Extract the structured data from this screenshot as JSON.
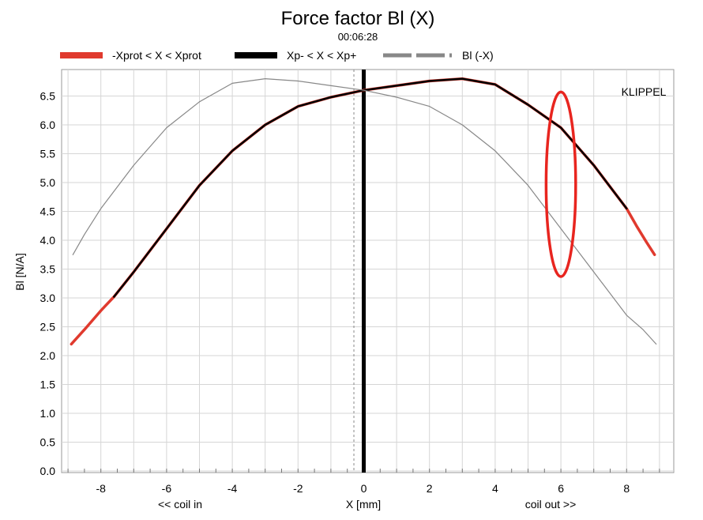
{
  "chart_data": {
    "type": "line",
    "title": "Force factor Bl (X)",
    "subtitle": "00:06:28",
    "watermark": "KLIPPEL",
    "xlabel": "X [mm]",
    "xlabel_left": "<< coil in",
    "xlabel_right": "coil out >>",
    "ylabel": "Bl [N/A]",
    "xlim": [
      -9.1,
      9.4
    ],
    "ylim": [
      0,
      6.9
    ],
    "xticks": [
      -8,
      -6,
      -4,
      -2,
      0,
      2,
      4,
      6,
      8
    ],
    "xtick_labels": [
      "-8",
      "-6",
      "-4",
      "-2",
      "0",
      "2",
      "4",
      "6",
      "8"
    ],
    "yticks": [
      0,
      0.5,
      1,
      1.5,
      2,
      2.5,
      3,
      3.5,
      4,
      4.5,
      5,
      5.5,
      6,
      6.5
    ],
    "ytick_labels": [
      "0.0",
      "0.5",
      "1.0",
      "1.5",
      "2.0",
      "2.5",
      "3.0",
      "3.5",
      "4.0",
      "4.5",
      "5.0",
      "5.5",
      "6.0",
      "6.5"
    ],
    "grid": true,
    "legend_position": "top",
    "legend": [
      {
        "label": "-Xprot < X < Xprot",
        "color": "#e03a2e",
        "style": "solid"
      },
      {
        "label": "Xp- < X < Xp+",
        "color": "#000000",
        "style": "solid"
      },
      {
        "label": "Bl (-X)",
        "color": "#888888",
        "style": "dashed"
      }
    ],
    "series": [
      {
        "name": "-Xprot < X < Xprot",
        "color": "#e03a2e",
        "x": [
          -8.9,
          -8.5,
          -8.0,
          -7.6,
          -7.0,
          -6.0,
          -5.0,
          -4.0,
          -3.0,
          -2.0,
          -1.0,
          0.0,
          1.0,
          2.0,
          3.0,
          4.0,
          5.0,
          6.0,
          7.0,
          8.0,
          8.3,
          8.6,
          8.85
        ],
        "y": [
          2.2,
          2.45,
          2.78,
          3.02,
          3.45,
          4.2,
          4.95,
          5.55,
          6.0,
          6.32,
          6.48,
          6.6,
          6.68,
          6.76,
          6.8,
          6.7,
          6.35,
          5.95,
          5.3,
          4.55,
          4.25,
          3.97,
          3.75
        ]
      },
      {
        "name": "Xp- < X < Xp+",
        "color": "#000000",
        "x": [
          -7.6,
          -7.0,
          -6.0,
          -5.0,
          -4.0,
          -3.0,
          -2.0,
          -1.0,
          0.0,
          1.0,
          2.0,
          3.0,
          4.0,
          5.0,
          6.0,
          7.0,
          8.0
        ],
        "y": [
          3.02,
          3.45,
          4.2,
          4.95,
          5.55,
          6.0,
          6.32,
          6.48,
          6.6,
          6.68,
          6.76,
          6.8,
          6.7,
          6.35,
          5.95,
          5.3,
          4.55
        ]
      },
      {
        "name": "Bl (-X)",
        "color": "#888888",
        "x": [
          -8.85,
          -8.5,
          -8.0,
          -7.0,
          -6.0,
          -5.0,
          -4.0,
          -3.0,
          -2.0,
          -1.0,
          0.0,
          1.0,
          2.0,
          3.0,
          4.0,
          5.0,
          6.0,
          7.0,
          8.0,
          8.5,
          8.9
        ],
        "y": [
          3.75,
          4.1,
          4.55,
          5.3,
          5.95,
          6.4,
          6.72,
          6.8,
          6.76,
          6.68,
          6.6,
          6.48,
          6.32,
          6.0,
          5.55,
          4.95,
          4.2,
          3.45,
          2.7,
          2.45,
          2.2
        ]
      }
    ],
    "annotations": [
      {
        "type": "vertical_line",
        "x": 0,
        "color": "#000000",
        "style": "solid"
      },
      {
        "type": "vertical_line",
        "x": -0.3,
        "color": "#888888",
        "style": "dashed"
      },
      {
        "type": "ellipse",
        "cx": 6.0,
        "cy": 4.97,
        "rx": 0.45,
        "ry": 1.6,
        "color": "#e8251f"
      }
    ]
  }
}
